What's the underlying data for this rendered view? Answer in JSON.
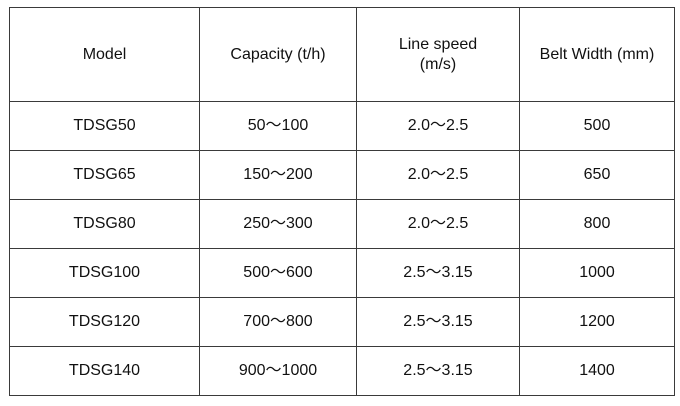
{
  "table": {
    "headers": {
      "model": "Model",
      "capacity": "Capacity (t/h)",
      "line_speed_line1": "Line speed",
      "line_speed_line2": "(m/s)",
      "belt_width": "Belt Width (mm)"
    },
    "rows": [
      {
        "model": "TDSG50",
        "capacity": "50～100",
        "line_speed": "2.0～2.5",
        "belt_width": "500"
      },
      {
        "model": "TDSG65",
        "capacity": "150～200",
        "line_speed": "2.0～2.5",
        "belt_width": "650"
      },
      {
        "model": "TDSG80",
        "capacity": "250～300",
        "line_speed": "2.0～2.5",
        "belt_width": "800"
      },
      {
        "model": "TDSG100",
        "capacity": "500～600",
        "line_speed": "2.5～3.15",
        "belt_width": "1000"
      },
      {
        "model": "TDSG120",
        "capacity": "700～800",
        "line_speed": "2.5～3.15",
        "belt_width": "1200"
      },
      {
        "model": "TDSG140",
        "capacity": "900～1000",
        "line_speed": "2.5～3.15",
        "belt_width": "1400"
      }
    ]
  }
}
